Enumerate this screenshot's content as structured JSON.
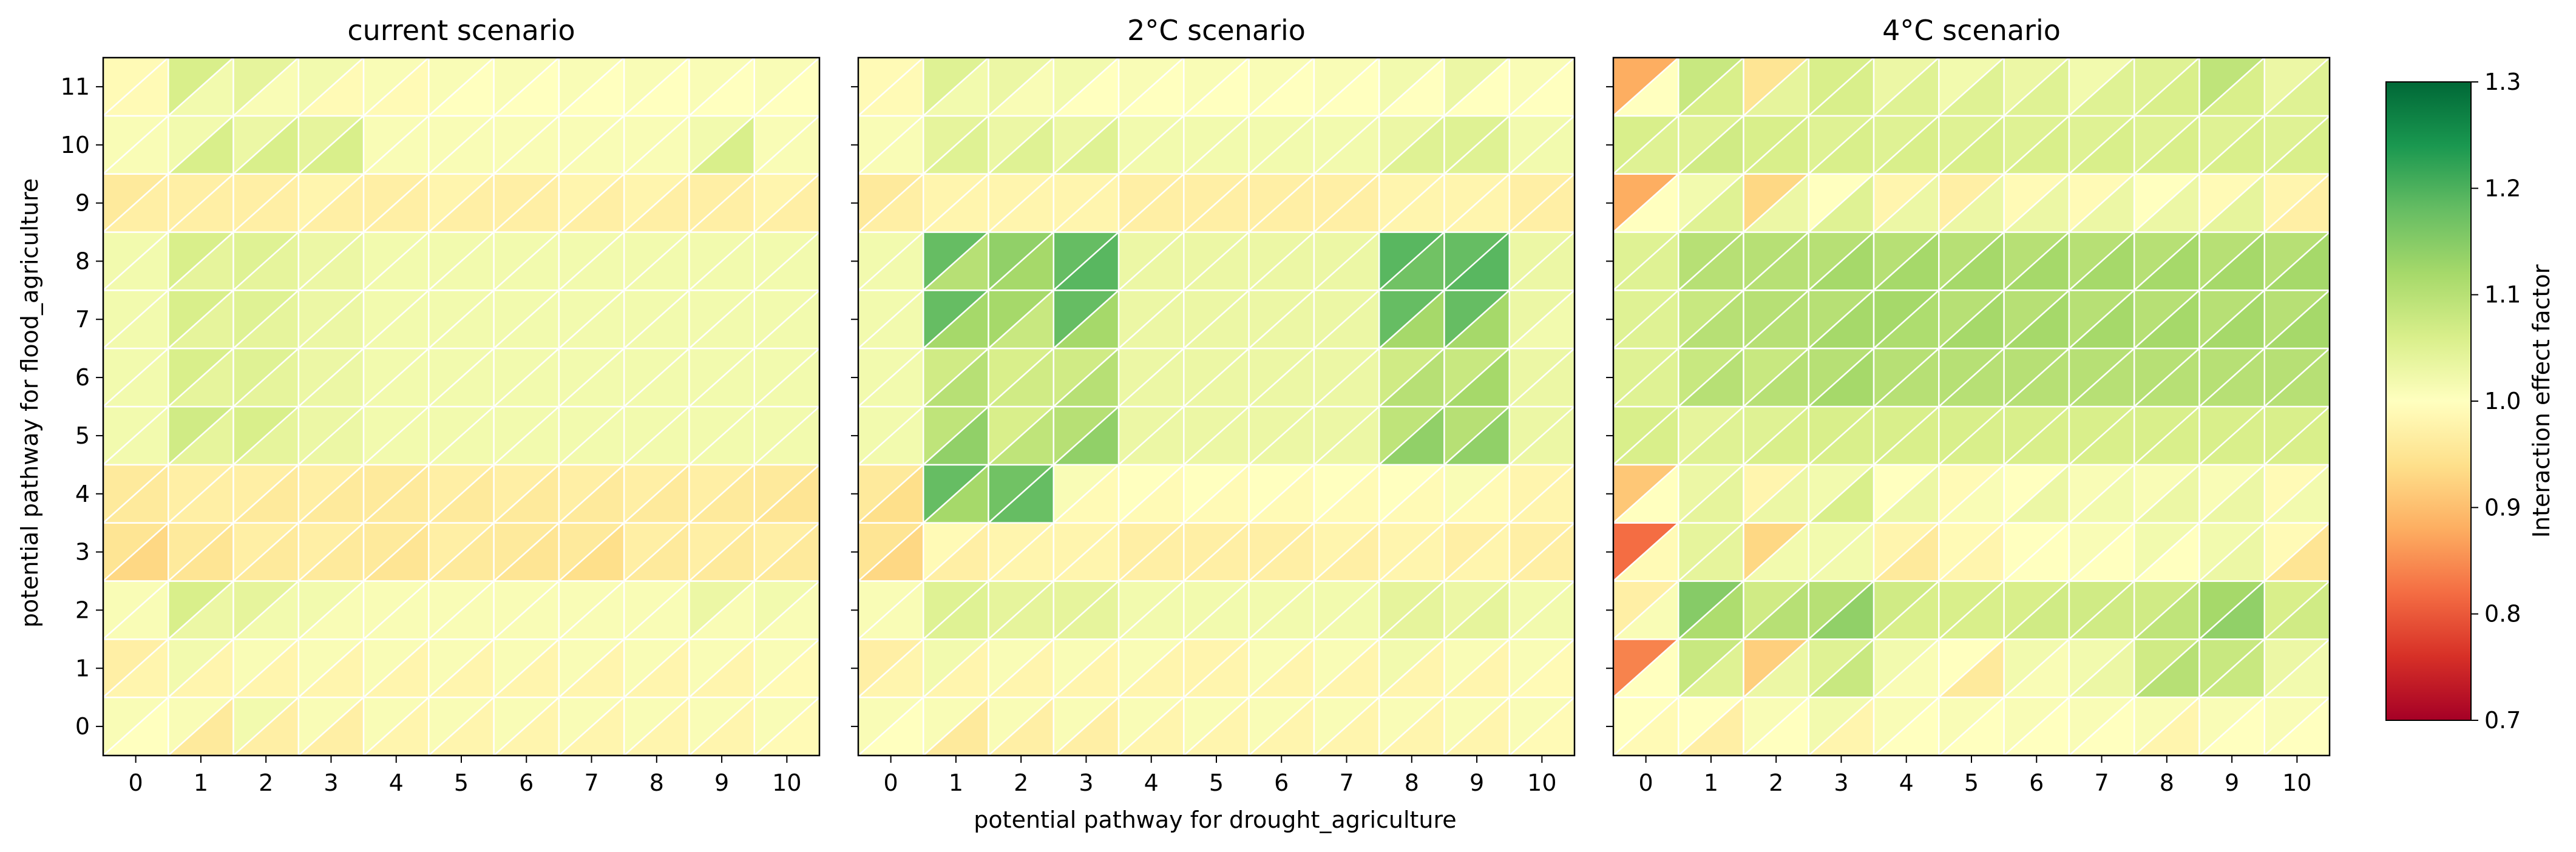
{
  "chart_data": {
    "type": "heatmap",
    "xlabel": "potential pathway for drought_agriculture",
    "ylabel": "potential pathway for flood_agriculture",
    "x_ticks": [
      0,
      1,
      2,
      3,
      4,
      5,
      6,
      7,
      8,
      9,
      10
    ],
    "y_ticks": [
      0,
      1,
      2,
      3,
      4,
      5,
      6,
      7,
      8,
      9,
      10,
      11
    ],
    "colorbar": {
      "label": "Interaction effect factor",
      "colormap": "RdYlGn",
      "range": [
        0.7,
        1.3
      ],
      "ticks": [
        "0.7",
        "0.8",
        "0.9",
        "1.0",
        "1.1",
        "1.2",
        "1.3"
      ]
    },
    "cell_structure": "each cell split by diagonal into upper-left triangle (value for flood_agriculture) and lower-right triangle (value for drought_agriculture)",
    "panels": [
      {
        "title": "current scenario",
        "upper": [
          [
            1.01,
            1.01,
            1.02,
            1.01,
            1.01,
            1.01,
            1.01,
            1.01,
            1.01,
            1.01,
            1.01
          ],
          [
            0.97,
            1.02,
            1.01,
            1.01,
            1.01,
            1.01,
            1.01,
            1.01,
            1.01,
            1.01,
            1.01
          ],
          [
            1.01,
            1.06,
            1.04,
            1.02,
            1.01,
            1.01,
            1.01,
            1.01,
            1.01,
            1.03,
            1.02
          ],
          [
            0.95,
            0.96,
            0.97,
            0.97,
            0.96,
            0.97,
            0.96,
            0.96,
            0.97,
            0.97,
            0.97
          ],
          [
            0.96,
            0.97,
            0.97,
            0.97,
            0.96,
            0.97,
            0.97,
            0.97,
            0.97,
            0.97,
            0.96
          ],
          [
            1.02,
            1.07,
            1.06,
            1.03,
            1.02,
            1.02,
            1.02,
            1.02,
            1.02,
            1.02,
            1.02
          ],
          [
            1.02,
            1.06,
            1.05,
            1.03,
            1.02,
            1.02,
            1.02,
            1.02,
            1.02,
            1.02,
            1.02
          ],
          [
            1.02,
            1.06,
            1.05,
            1.03,
            1.02,
            1.02,
            1.02,
            1.02,
            1.02,
            1.02,
            1.02
          ],
          [
            1.02,
            1.06,
            1.05,
            1.03,
            1.02,
            1.02,
            1.02,
            1.02,
            1.02,
            1.02,
            1.02
          ],
          [
            0.96,
            0.97,
            0.97,
            0.98,
            0.97,
            0.98,
            0.97,
            0.98,
            0.98,
            0.97,
            0.98
          ],
          [
            1.01,
            1.02,
            1.03,
            1.04,
            1.01,
            1.01,
            1.01,
            1.01,
            1.01,
            1.02,
            1.01
          ],
          [
            0.99,
            1.06,
            1.04,
            1.02,
            1.01,
            1.01,
            1.01,
            1.01,
            1.01,
            1.01,
            1.01
          ]
        ],
        "lower": [
          [
            1.0,
            0.96,
            0.97,
            0.97,
            0.98,
            0.98,
            0.98,
            0.98,
            0.98,
            0.98,
            0.99
          ],
          [
            0.98,
            0.98,
            0.98,
            0.98,
            0.98,
            0.98,
            0.98,
            0.98,
            0.98,
            0.98,
            0.99
          ],
          [
            1.01,
            1.03,
            1.02,
            1.01,
            1.01,
            1.01,
            1.01,
            1.01,
            1.01,
            1.01,
            1.01
          ],
          [
            0.93,
            0.95,
            0.96,
            0.96,
            0.95,
            0.96,
            0.95,
            0.94,
            0.96,
            0.96,
            0.96
          ],
          [
            0.96,
            0.97,
            0.96,
            0.96,
            0.96,
            0.96,
            0.96,
            0.96,
            0.96,
            0.96,
            0.95
          ],
          [
            1.02,
            1.04,
            1.04,
            1.03,
            1.02,
            1.02,
            1.02,
            1.02,
            1.02,
            1.02,
            1.02
          ],
          [
            1.02,
            1.04,
            1.04,
            1.03,
            1.02,
            1.02,
            1.02,
            1.02,
            1.02,
            1.02,
            1.02
          ],
          [
            1.02,
            1.04,
            1.04,
            1.03,
            1.02,
            1.02,
            1.02,
            1.02,
            1.02,
            1.02,
            1.02
          ],
          [
            1.02,
            1.04,
            1.04,
            1.03,
            1.02,
            1.02,
            1.02,
            1.02,
            1.02,
            1.02,
            1.02
          ],
          [
            0.97,
            0.97,
            0.97,
            0.97,
            0.97,
            0.97,
            0.97,
            0.97,
            0.97,
            0.97,
            0.97
          ],
          [
            1.01,
            1.06,
            1.06,
            1.06,
            1.01,
            1.01,
            1.01,
            1.01,
            1.01,
            1.06,
            1.01
          ],
          [
            0.99,
            1.02,
            1.01,
            0.99,
            0.99,
            1.0,
            1.0,
            1.0,
            1.0,
            1.0,
            1.0
          ]
        ]
      },
      {
        "title": "2°C scenario",
        "upper": [
          [
            1.01,
            1.01,
            1.01,
            1.01,
            1.01,
            1.01,
            1.01,
            1.01,
            1.01,
            1.01,
            1.01
          ],
          [
            0.97,
            1.02,
            1.01,
            1.01,
            1.01,
            0.98,
            1.01,
            1.01,
            1.02,
            1.01,
            1.01
          ],
          [
            1.01,
            1.05,
            1.04,
            1.04,
            1.02,
            1.02,
            1.02,
            1.02,
            1.04,
            1.03,
            1.02
          ],
          [
            0.95,
            0.99,
            0.98,
            0.98,
            0.97,
            0.97,
            0.97,
            0.98,
            0.98,
            0.97,
            0.97
          ],
          [
            0.96,
            1.18,
            1.17,
            1.01,
            1.0,
            1.0,
            1.0,
            1.0,
            1.0,
            1.01,
            0.98
          ],
          [
            1.02,
            1.09,
            1.06,
            1.1,
            1.03,
            1.03,
            1.03,
            1.03,
            1.09,
            1.1,
            1.03
          ],
          [
            1.02,
            1.07,
            1.06,
            1.07,
            1.03,
            1.03,
            1.03,
            1.03,
            1.07,
            1.08,
            1.03
          ],
          [
            1.02,
            1.18,
            1.12,
            1.18,
            1.03,
            1.03,
            1.03,
            1.03,
            1.18,
            1.18,
            1.03
          ],
          [
            1.02,
            1.18,
            1.14,
            1.18,
            1.03,
            1.03,
            1.03,
            1.03,
            1.19,
            1.18,
            1.03
          ],
          [
            0.96,
            0.98,
            0.98,
            0.98,
            0.97,
            0.97,
            0.97,
            0.97,
            0.98,
            0.98,
            0.97
          ],
          [
            1.01,
            1.04,
            1.03,
            1.03,
            1.02,
            1.02,
            1.02,
            1.02,
            1.03,
            1.05,
            1.02
          ],
          [
            0.99,
            1.05,
            1.03,
            1.02,
            1.01,
            1.01,
            1.01,
            1.01,
            1.02,
            1.03,
            1.01
          ]
        ],
        "lower": [
          [
            1.0,
            0.96,
            0.97,
            0.97,
            0.98,
            0.98,
            0.98,
            0.98,
            0.98,
            0.98,
            0.99
          ],
          [
            0.98,
            0.98,
            0.98,
            0.98,
            0.98,
            0.98,
            0.98,
            0.98,
            0.98,
            0.98,
            0.99
          ],
          [
            1.01,
            1.05,
            1.04,
            1.04,
            1.02,
            1.02,
            1.02,
            1.02,
            1.04,
            1.04,
            1.02
          ],
          [
            0.93,
            0.97,
            0.98,
            0.98,
            0.97,
            0.97,
            0.97,
            0.97,
            0.98,
            0.98,
            0.97
          ],
          [
            0.94,
            1.12,
            1.18,
            0.99,
            0.99,
            0.99,
            0.99,
            0.99,
            0.99,
            0.99,
            0.98
          ],
          [
            1.02,
            1.14,
            1.09,
            1.14,
            1.03,
            1.03,
            1.03,
            1.03,
            1.14,
            1.14,
            1.03
          ],
          [
            1.02,
            1.1,
            1.07,
            1.1,
            1.03,
            1.03,
            1.03,
            1.03,
            1.1,
            1.12,
            1.03
          ],
          [
            1.02,
            1.12,
            1.08,
            1.12,
            1.03,
            1.03,
            1.03,
            1.03,
            1.12,
            1.12,
            1.02
          ],
          [
            1.02,
            1.1,
            1.12,
            1.19,
            1.03,
            1.03,
            1.03,
            1.03,
            1.17,
            1.19,
            1.03
          ],
          [
            0.97,
            0.98,
            0.98,
            0.98,
            0.97,
            0.97,
            0.97,
            0.97,
            0.98,
            0.98,
            0.97
          ],
          [
            1.01,
            1.05,
            1.05,
            1.05,
            1.02,
            1.02,
            1.02,
            1.02,
            1.05,
            1.05,
            1.02
          ],
          [
            0.99,
            1.02,
            1.01,
            1.0,
            1.0,
            1.0,
            1.0,
            1.0,
            1.0,
            1.0,
            1.0
          ]
        ]
      },
      {
        "title": "4°C scenario",
        "upper": [
          [
            1.0,
            1.0,
            1.01,
            1.02,
            1.01,
            1.01,
            1.01,
            1.01,
            1.01,
            1.01,
            1.01
          ],
          [
            0.84,
            1.08,
            0.92,
            1.05,
            1.02,
            1.0,
            1.02,
            1.02,
            1.07,
            1.08,
            1.03
          ],
          [
            0.97,
            1.15,
            1.07,
            1.1,
            1.07,
            1.06,
            1.06,
            1.07,
            1.07,
            1.12,
            1.06
          ],
          [
            0.82,
            1.04,
            0.93,
            1.02,
            0.98,
            0.99,
            1.0,
            1.01,
            1.02,
            1.02,
            0.99
          ],
          [
            0.91,
            1.03,
            0.98,
            1.02,
            1.0,
            0.99,
            1.0,
            1.01,
            1.01,
            1.01,
            0.99
          ],
          [
            1.06,
            1.04,
            1.05,
            1.06,
            1.06,
            1.06,
            1.06,
            1.06,
            1.06,
            1.06,
            1.06
          ],
          [
            1.05,
            1.08,
            1.08,
            1.1,
            1.1,
            1.1,
            1.1,
            1.1,
            1.1,
            1.1,
            1.1
          ],
          [
            1.05,
            1.08,
            1.1,
            1.1,
            1.12,
            1.1,
            1.1,
            1.1,
            1.1,
            1.1,
            1.1
          ],
          [
            1.05,
            1.1,
            1.1,
            1.1,
            1.1,
            1.1,
            1.1,
            1.1,
            1.1,
            1.1,
            1.1
          ],
          [
            0.88,
            1.02,
            0.93,
            1.0,
            0.98,
            0.97,
            0.99,
            0.99,
            1.0,
            0.99,
            0.98
          ],
          [
            1.06,
            1.05,
            1.06,
            1.05,
            1.05,
            1.05,
            1.05,
            1.05,
            1.05,
            1.05,
            1.05
          ],
          [
            0.88,
            1.08,
            0.95,
            1.06,
            1.03,
            1.02,
            1.03,
            1.02,
            1.05,
            1.09,
            1.03
          ]
        ],
        "lower": [
          [
            0.99,
            0.97,
            1.0,
            0.98,
            1.0,
            1.0,
            1.0,
            1.0,
            0.98,
            1.0,
            1.0
          ],
          [
            1.0,
            1.05,
            1.03,
            1.08,
            1.01,
            0.96,
            1.01,
            1.03,
            1.1,
            1.08,
            1.02
          ],
          [
            1.01,
            1.11,
            1.1,
            1.14,
            1.06,
            1.06,
            1.07,
            1.07,
            1.09,
            1.14,
            1.07
          ],
          [
            0.99,
            1.04,
            1.02,
            1.02,
            0.96,
            0.98,
            1.0,
            1.0,
            1.0,
            1.03,
            0.95
          ],
          [
            1.0,
            1.04,
            1.03,
            1.06,
            1.03,
            1.01,
            1.03,
            1.02,
            1.03,
            1.03,
            1.02
          ],
          [
            1.06,
            1.05,
            1.06,
            1.06,
            1.06,
            1.06,
            1.06,
            1.06,
            1.06,
            1.06,
            1.06
          ],
          [
            1.05,
            1.1,
            1.1,
            1.12,
            1.1,
            1.1,
            1.1,
            1.1,
            1.1,
            1.1,
            1.1
          ],
          [
            1.05,
            1.1,
            1.1,
            1.12,
            1.11,
            1.12,
            1.12,
            1.12,
            1.12,
            1.12,
            1.12
          ],
          [
            1.05,
            1.1,
            1.1,
            1.12,
            1.12,
            1.12,
            1.12,
            1.12,
            1.12,
            1.12,
            1.12
          ],
          [
            1.0,
            1.05,
            1.03,
            1.05,
            1.03,
            1.03,
            1.03,
            1.03,
            1.03,
            1.04,
            0.97
          ],
          [
            1.05,
            1.07,
            1.06,
            1.06,
            1.06,
            1.06,
            1.06,
            1.06,
            1.06,
            1.06,
            1.06
          ],
          [
            1.0,
            1.06,
            1.04,
            1.06,
            1.05,
            1.05,
            1.05,
            1.05,
            1.06,
            1.06,
            1.05
          ]
        ]
      }
    ]
  }
}
